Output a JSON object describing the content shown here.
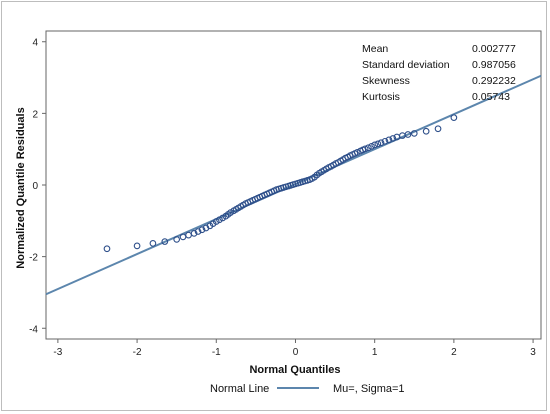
{
  "chart_data": {
    "type": "scatter",
    "title": "",
    "xlabel": "Normal Quantiles",
    "ylabel": "Normalized Quantile Residuals",
    "xlim": [
      -3.15,
      3.1
    ],
    "ylim": [
      -4.3,
      4.3
    ],
    "x_ticks": [
      -3,
      -2,
      -1,
      0,
      1,
      2,
      3
    ],
    "y_ticks": [
      -4,
      -2,
      0,
      2,
      4
    ],
    "grid": false,
    "stats": [
      {
        "label": "Mean",
        "value": "0.002777"
      },
      {
        "label": "Standard deviation",
        "value": "0.987056"
      },
      {
        "label": "Skewness",
        "value": "0.292232"
      },
      {
        "label": "Kurtosis",
        "value": "0.05743"
      }
    ],
    "reference_line": {
      "x": [
        -3.15,
        3.1
      ],
      "y": [
        -3.05,
        3.05
      ]
    },
    "legend": {
      "placement": "bottom",
      "title": "Normal Line",
      "entry": "Mu=, Sigma=1"
    },
    "colors": {
      "points": "#2e4f8a",
      "line": "#5c86ad",
      "axis": "#666666"
    },
    "points": {
      "x": [
        -2.38,
        -2.0,
        -1.8,
        -1.65,
        -1.5,
        -1.42,
        -1.35,
        -1.28,
        -1.23,
        -1.18,
        -1.13,
        -1.08,
        -1.04,
        -1.0,
        -0.96,
        -0.92,
        -0.88,
        -0.85,
        -0.82,
        -0.78,
        -0.75,
        -0.72,
        -0.69,
        -0.66,
        -0.63,
        -0.6,
        -0.57,
        -0.54,
        -0.51,
        -0.48,
        -0.45,
        -0.42,
        -0.39,
        -0.36,
        -0.33,
        -0.3,
        -0.27,
        -0.24,
        -0.21,
        -0.18,
        -0.15,
        -0.12,
        -0.09,
        -0.06,
        -0.03,
        0.0,
        0.03,
        0.06,
        0.09,
        0.12,
        0.15,
        0.18,
        0.21,
        0.24,
        0.27,
        0.3,
        0.33,
        0.36,
        0.39,
        0.42,
        0.45,
        0.48,
        0.51,
        0.54,
        0.57,
        0.6,
        0.63,
        0.66,
        0.69,
        0.72,
        0.75,
        0.78,
        0.82,
        0.85,
        0.88,
        0.92,
        0.96,
        1.0,
        1.04,
        1.08,
        1.13,
        1.18,
        1.23,
        1.28,
        1.35,
        1.42,
        1.5,
        1.65,
        1.8,
        2.0
      ],
      "y": [
        -1.78,
        -1.7,
        -1.63,
        -1.58,
        -1.52,
        -1.45,
        -1.4,
        -1.35,
        -1.3,
        -1.25,
        -1.2,
        -1.14,
        -1.08,
        -1.02,
        -0.97,
        -0.92,
        -0.87,
        -0.82,
        -0.77,
        -0.72,
        -0.68,
        -0.64,
        -0.6,
        -0.56,
        -0.52,
        -0.49,
        -0.46,
        -0.43,
        -0.4,
        -0.37,
        -0.34,
        -0.31,
        -0.28,
        -0.25,
        -0.22,
        -0.19,
        -0.16,
        -0.13,
        -0.11,
        -0.09,
        -0.07,
        -0.05,
        -0.03,
        -0.01,
        0.01,
        0.03,
        0.05,
        0.07,
        0.09,
        0.11,
        0.13,
        0.15,
        0.18,
        0.22,
        0.28,
        0.33,
        0.37,
        0.41,
        0.45,
        0.49,
        0.52,
        0.56,
        0.6,
        0.63,
        0.67,
        0.71,
        0.75,
        0.78,
        0.82,
        0.85,
        0.88,
        0.91,
        0.95,
        0.98,
        1.01,
        1.04,
        1.08,
        1.12,
        1.15,
        1.18,
        1.22,
        1.26,
        1.3,
        1.34,
        1.38,
        1.41,
        1.44,
        1.5,
        1.57,
        1.88
      ]
    }
  }
}
